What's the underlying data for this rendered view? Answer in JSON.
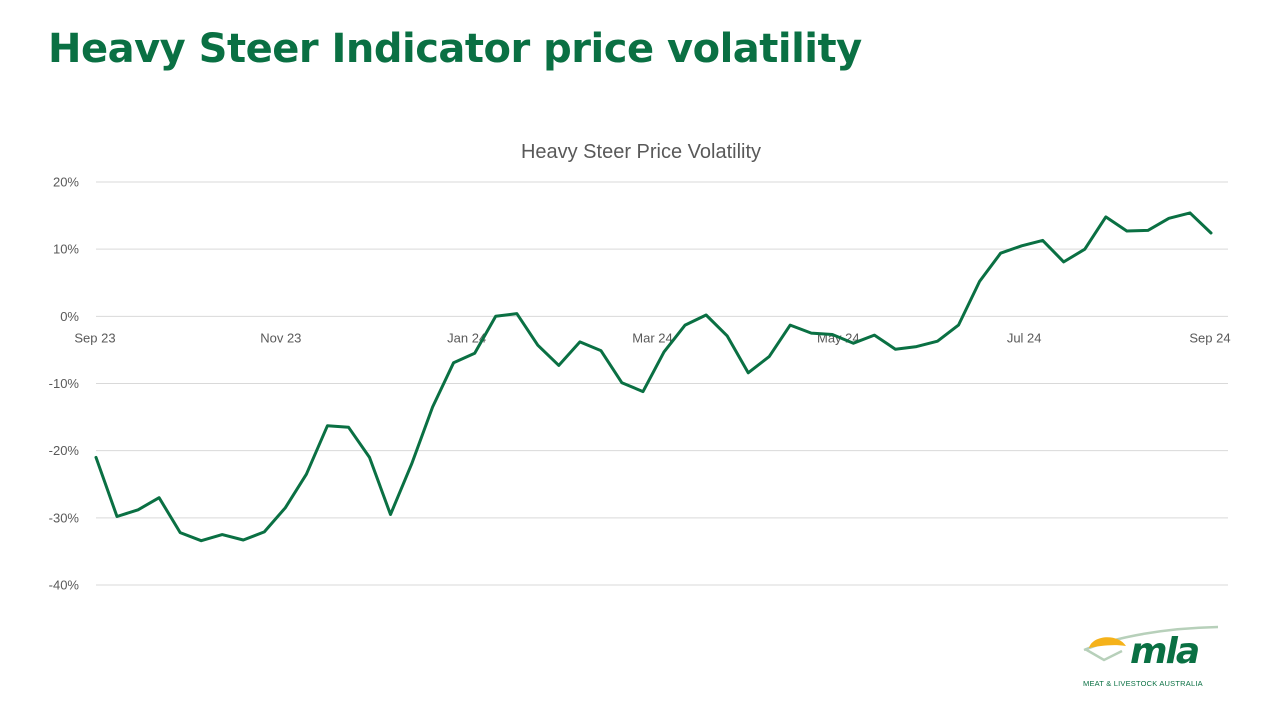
{
  "slide": {
    "title": "Heavy Steer Indicator price volatility"
  },
  "logo": {
    "wordmark": "mla",
    "tagline": "MEAT & LIVESTOCK AUSTRALIA",
    "colors": {
      "green": "#0a7043",
      "gold": "#f5b21a",
      "sage": "#b7d0ba"
    }
  },
  "chart_data": {
    "type": "line",
    "title": "Heavy Steer Price Volatility",
    "xlabel": "",
    "ylabel": "",
    "ylim": [
      -40,
      20
    ],
    "yticks": [
      20,
      10,
      0,
      -10,
      -20,
      -30,
      -40
    ],
    "ytick_labels": [
      "20%",
      "10%",
      "0%",
      "-10%",
      "-20%",
      "-30%",
      "-40%"
    ],
    "xtick_labels": [
      "Sep 23",
      "Nov 23",
      "Jan 24",
      "Mar 24",
      "May 24",
      "Jul 24",
      "Sep 24"
    ],
    "x_axis_crosses_at": 0,
    "grid": true,
    "legend": "none",
    "series": [
      {
        "color": "#0a7043",
        "values": [
          -21,
          -29.8,
          -28.8,
          -27,
          -32.2,
          -33.4,
          -32.5,
          -33.3,
          -32.1,
          -28.5,
          -23.5,
          -16.3,
          -16.5,
          -21,
          -29.5,
          -22,
          -13.5,
          -6.9,
          -5.5,
          0,
          0.4,
          -4.3,
          -7.3,
          -3.8,
          -5.1,
          -9.9,
          -11.2,
          -5.3,
          -1.3,
          0.2,
          -2.9,
          -8.4,
          -6,
          -1.3,
          -2.5,
          -2.7,
          -4,
          -2.8,
          -4.9,
          -4.5,
          -3.7,
          -1.3,
          5.2,
          9.4,
          10.5,
          11.3,
          8.1,
          10,
          14.8,
          12.7,
          12.8,
          14.6,
          15.4,
          12.4
        ]
      }
    ]
  }
}
